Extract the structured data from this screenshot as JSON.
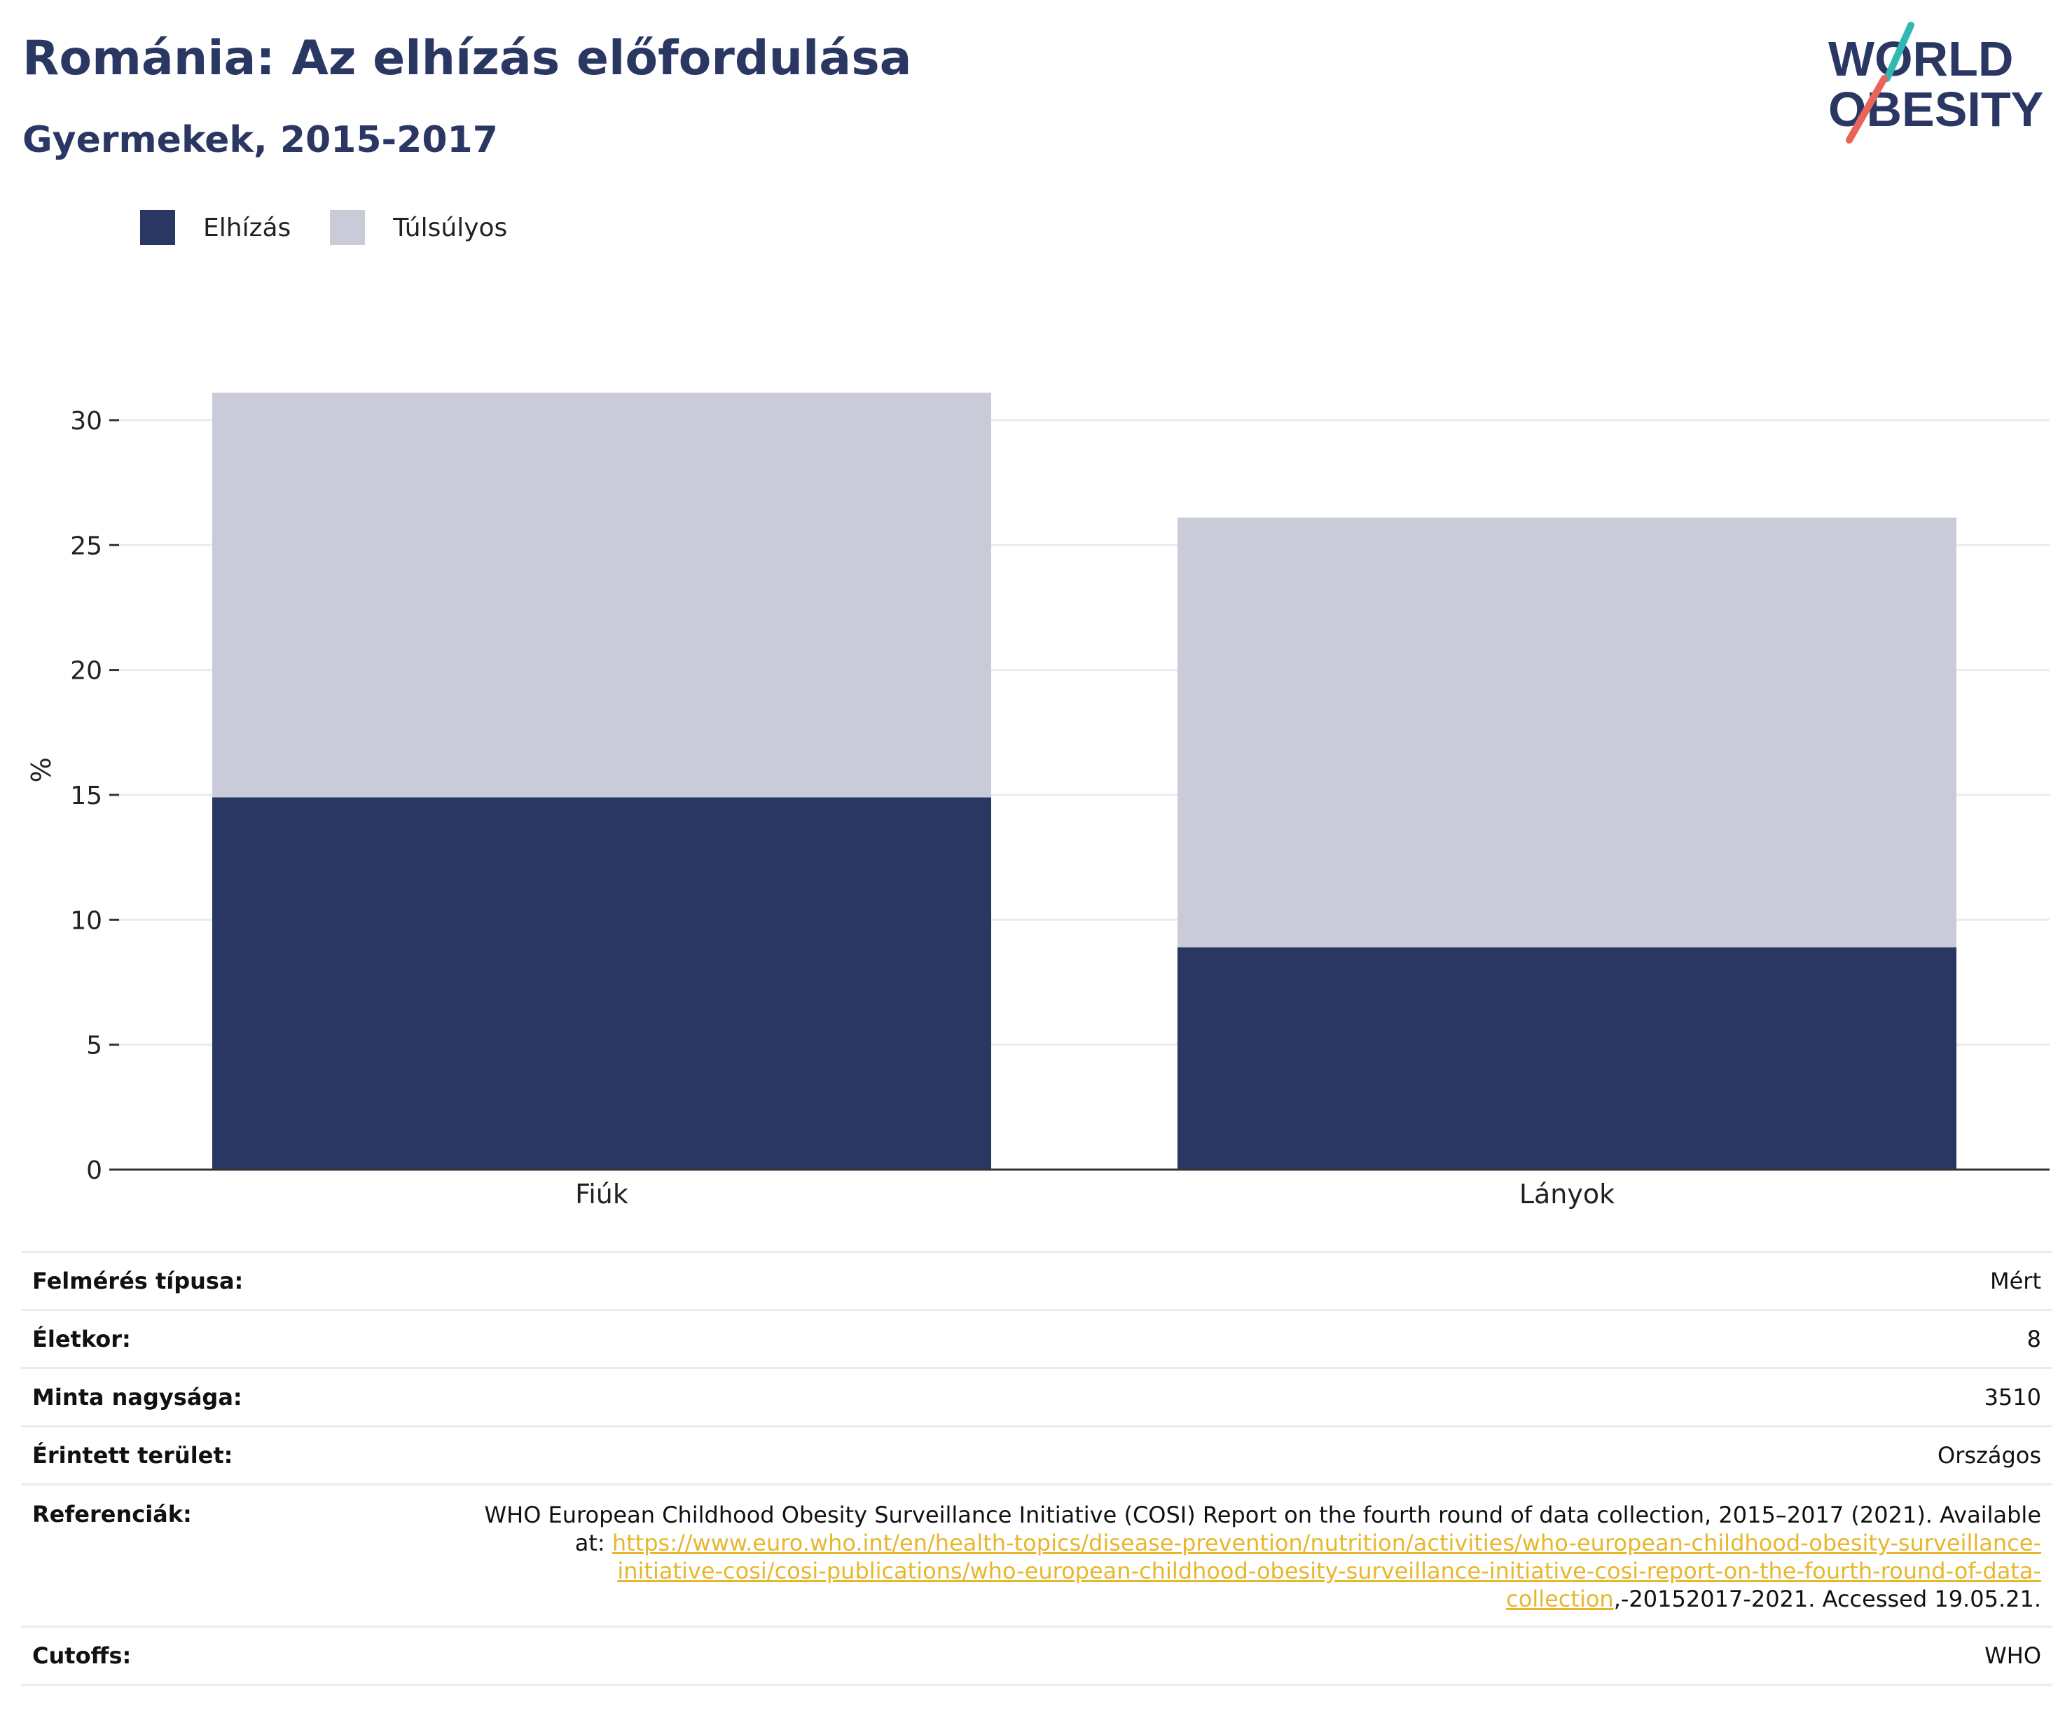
{
  "header": {
    "title": "Románia: Az elhízás előfordulása",
    "subtitle": "Gyermekek, 2015-2017",
    "logo_line1": "WORLD",
    "logo_line2": "OBESITY"
  },
  "legend": [
    {
      "label": "Elhízás",
      "color": "#2a3763"
    },
    {
      "label": "Túlsúlyos",
      "color": "#c9ccd8"
    }
  ],
  "chart_data": {
    "type": "bar",
    "stacked": true,
    "categories": [
      "Fiúk",
      "Lányok"
    ],
    "series": [
      {
        "name": "Elhízás",
        "values": [
          14.9,
          8.9
        ],
        "color": "#2a3763"
      },
      {
        "name": "Túlsúlyos",
        "values": [
          16.2,
          17.2
        ],
        "color": "#c9ccd8"
      }
    ],
    "ylabel": "%",
    "ylim": [
      0,
      32
    ],
    "yticks": [
      0,
      5,
      10,
      15,
      20,
      25,
      30
    ],
    "grid": true,
    "legend_position": "top-left"
  },
  "info": {
    "survey_type": {
      "label": "Felmérés típusa:",
      "value": "Mért"
    },
    "age": {
      "label": "Életkor:",
      "value": "8"
    },
    "sample": {
      "label": "Minta nagysága:",
      "value": "3510"
    },
    "area": {
      "label": "Érintett terület:",
      "value": "Országos"
    },
    "references": {
      "label": "Referenciák:",
      "text_before": "WHO European Childhood Obesity Surveillance Initiative (COSI) Report on the fourth round of data collection, 2015–2017 (2021). Available at: ",
      "link": "https://www.euro.who.int/en/health-topics/disease-prevention/nutrition/activities/who-european-childhood-obesity-surveillance-initiative-cosi/cosi-publications/who-european-childhood-obesity-surveillance-initiative-cosi-report-on-the-fourth-round-of-data-collection",
      "text_after": ",-20152017-2021. Accessed 19.05.21."
    },
    "cutoffs": {
      "label": "Cutoffs:",
      "value": "WHO"
    }
  }
}
